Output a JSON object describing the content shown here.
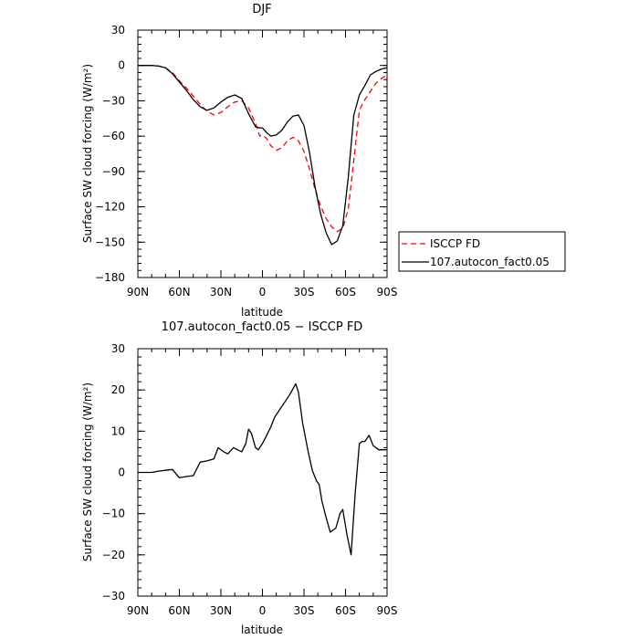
{
  "chart_data": [
    {
      "type": "line",
      "title": "DJF",
      "xlabel": "latitude",
      "ylabel": "Surface SW cloud forcing (W/m²)",
      "xlim": [
        90,
        -90
      ],
      "ylim": [
        -180,
        30
      ],
      "xticks": [
        90,
        60,
        30,
        0,
        -30,
        -60,
        -90
      ],
      "xtick_labels": [
        "90N",
        "60N",
        "30N",
        "0",
        "30S",
        "60S",
        "90S"
      ],
      "yticks": [
        30,
        0,
        -30,
        -60,
        -90,
        -120,
        -150,
        -180
      ],
      "ytick_labels": [
        "30",
        "0",
        "−30",
        "−60",
        "−90",
        "−120",
        "−150",
        "−180"
      ],
      "grid": false,
      "legend_position": "right",
      "series": [
        {
          "name": "ISCCP FD",
          "color": "#ff0000",
          "dash": "dashed",
          "x": [
            90,
            85,
            80,
            75,
            70,
            65,
            60,
            55,
            50,
            45,
            40,
            35,
            30,
            25,
            20,
            15,
            10,
            5,
            2,
            0,
            -3,
            -6,
            -10,
            -14,
            -18,
            -22,
            -26,
            -30,
            -34,
            -38,
            -42,
            -46,
            -50,
            -54,
            -58,
            -62,
            -66,
            -70,
            -74,
            -78,
            -82,
            -86,
            -90
          ],
          "y": [
            0,
            0,
            0,
            -0.5,
            -2,
            -6,
            -13,
            -19,
            -26,
            -33,
            -39,
            -42,
            -40,
            -35,
            -31,
            -30,
            -36,
            -49,
            -60,
            -59,
            -62,
            -68,
            -72,
            -70,
            -64,
            -61,
            -64,
            -73,
            -88,
            -105,
            -119,
            -130,
            -137,
            -141,
            -138,
            -122,
            -80,
            -38,
            -29,
            -22,
            -15,
            -11,
            -8
          ]
        },
        {
          "name": "107.autocon_fact0.05",
          "color": "#000000",
          "dash": "solid",
          "x": [
            90,
            85,
            80,
            75,
            70,
            65,
            60,
            55,
            50,
            45,
            40,
            35,
            30,
            25,
            20,
            15,
            10,
            5,
            2,
            0,
            -3,
            -6,
            -10,
            -14,
            -18,
            -22,
            -26,
            -30,
            -34,
            -38,
            -42,
            -46,
            -50,
            -54,
            -58,
            -62,
            -66,
            -70,
            -74,
            -78,
            -82,
            -86,
            -90
          ],
          "y": [
            0,
            0,
            0,
            -0.5,
            -2,
            -7,
            -14,
            -21,
            -29,
            -35,
            -38,
            -36,
            -31,
            -27,
            -25,
            -28,
            -41,
            -52,
            -53,
            -53,
            -57,
            -60,
            -59,
            -55,
            -48,
            -43,
            -42,
            -51,
            -74,
            -103,
            -126,
            -142,
            -152,
            -149,
            -136,
            -95,
            -42,
            -25,
            -17,
            -8,
            -5,
            -3,
            -2
          ]
        }
      ]
    },
    {
      "type": "line",
      "title": "107.autocon_fact0.05 − ISCCP FD",
      "xlabel": "latitude",
      "ylabel": "Surface SW cloud forcing (W/m²)",
      "xlim": [
        90,
        -90
      ],
      "ylim": [
        -30,
        30
      ],
      "xticks": [
        90,
        60,
        30,
        0,
        -30,
        -60,
        -90
      ],
      "xtick_labels": [
        "90N",
        "60N",
        "30N",
        "0",
        "30S",
        "60S",
        "90S"
      ],
      "yticks": [
        30,
        20,
        10,
        0,
        -10,
        -20,
        -30
      ],
      "ytick_labels": [
        "30",
        "20",
        "10",
        "0",
        "−10",
        "−20",
        "−30"
      ],
      "grid": false,
      "series": [
        {
          "color": "#000000",
          "x": [
            90,
            85,
            80,
            75,
            70,
            65,
            60,
            55,
            50,
            45,
            40,
            35,
            32,
            28,
            25,
            21,
            18,
            15,
            12,
            10,
            8,
            5,
            3,
            0,
            -3,
            -6,
            -9,
            -12,
            -16,
            -20,
            -24,
            -26,
            -29,
            -33,
            -36,
            -39,
            -41,
            -43,
            -46,
            -49,
            -53,
            -56,
            -58,
            -61,
            -64,
            -67,
            -70,
            -72,
            -74,
            -77,
            -80,
            -84,
            -87,
            -90
          ],
          "y": [
            0,
            0,
            0,
            0.3,
            0.5,
            0.7,
            -1.3,
            -1.0,
            -0.8,
            2.5,
            2.8,
            3.3,
            6.0,
            5.0,
            4.5,
            6.0,
            5.5,
            5.0,
            7.0,
            10.5,
            9.5,
            6.0,
            5.5,
            7.0,
            9.0,
            11.0,
            13.5,
            15.0,
            17.0,
            19.0,
            21.5,
            19.5,
            12.0,
            5.0,
            0.5,
            -2.0,
            -3.0,
            -7.0,
            -11.0,
            -14.5,
            -13.5,
            -10.0,
            -9.0,
            -15.0,
            -20.0,
            -5.0,
            7.0,
            7.5,
            7.5,
            9.0,
            6.5,
            5.5,
            5.5,
            5.5
          ]
        }
      ]
    }
  ]
}
